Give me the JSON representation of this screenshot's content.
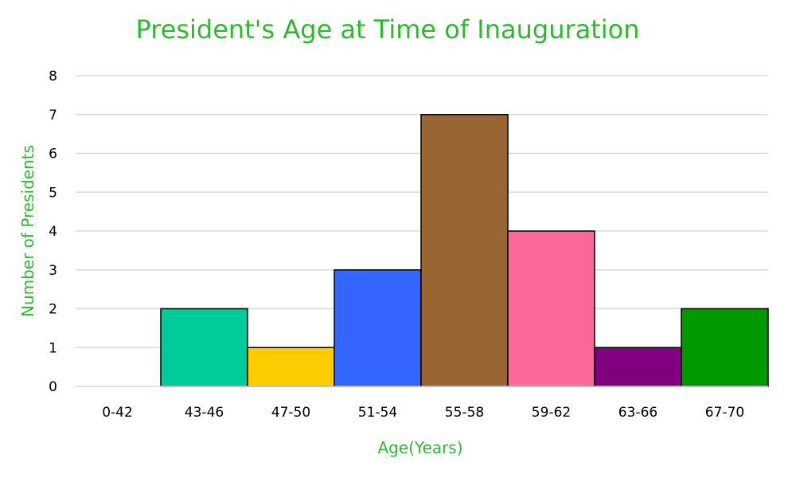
{
  "chart_data": {
    "type": "bar",
    "title": "President's Age at Time of Inauguration",
    "xlabel": "Age(Years)",
    "ylabel": "Number  of Presidents",
    "categories": [
      "0-42",
      "43-46",
      "47-50",
      "51-54",
      "55-58",
      "59-62",
      "63-66",
      "67-70"
    ],
    "values": [
      0,
      2,
      1,
      3,
      7,
      4,
      1,
      2
    ],
    "bar_colors": [
      "#ffffff",
      "#00cc99",
      "#ffcc00",
      "#3366ff",
      "#996633",
      "#ff6699",
      "#800080",
      "#009900"
    ],
    "ylim": [
      0,
      8
    ],
    "yticks": [
      "0",
      "1",
      "2",
      "3",
      "4",
      "5",
      "6",
      "7",
      "8"
    ],
    "grid": true,
    "bar_gap": "none",
    "colors": {
      "text_accent": "#2db82d",
      "grid": "#d9d9d9",
      "bar_outline": "#000000"
    }
  }
}
